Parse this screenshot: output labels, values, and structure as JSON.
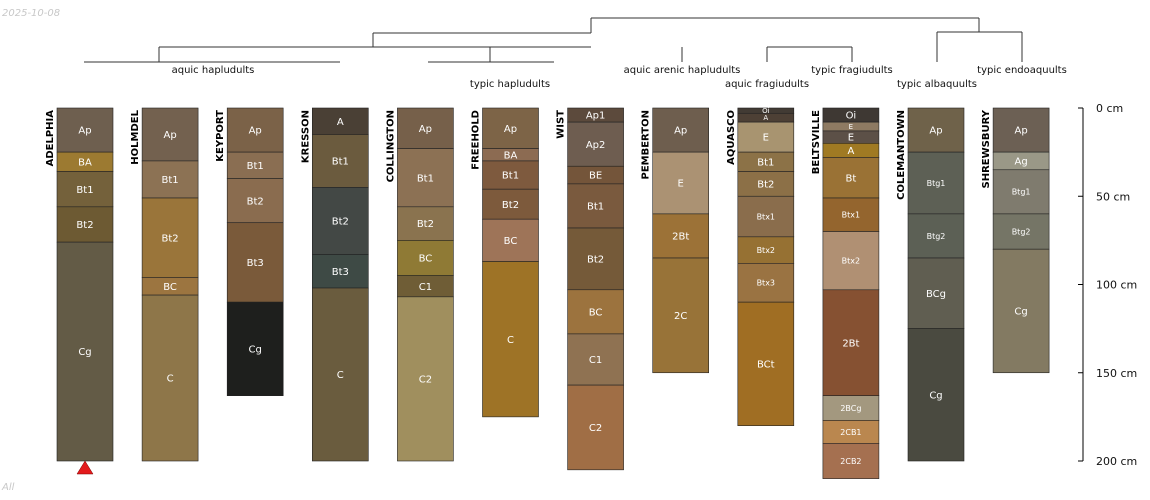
{
  "date_label": "2025-10-08",
  "panel_label": "All",
  "chart_data": {
    "type": "soil-profile-sketch",
    "depth_units": "cm",
    "depth_axis": {
      "min": 0,
      "max": 200,
      "ticks": [
        0,
        50,
        100,
        150,
        200
      ],
      "tick_labels": [
        "0 cm",
        "50 cm",
        "100 cm",
        "150 cm",
        "200 cm"
      ]
    },
    "groups": [
      {
        "label": "aquic hapludults",
        "members": [
          0,
          1,
          2,
          3
        ]
      },
      {
        "label": "typic hapludults",
        "members": [
          4,
          5,
          6
        ]
      },
      {
        "label": "aquic arenic hapludults",
        "members": [
          7
        ]
      },
      {
        "label": "aquic fragiudults",
        "members": [
          8
        ]
      },
      {
        "label": "typic fragiudults",
        "members": [
          9
        ]
      },
      {
        "label": "typic albaquults",
        "members": [
          10
        ]
      },
      {
        "label": "typic endoaquults",
        "members": [
          11
        ]
      }
    ],
    "marker": {
      "profile": "ADELPHIA",
      "shape": "triangle",
      "color": "#e31a1c"
    },
    "profiles": [
      {
        "name": "ADELPHIA",
        "horizons": [
          {
            "name": "Ap",
            "top": 0,
            "bottom": 25,
            "color": "#6e5f4f"
          },
          {
            "name": "BA",
            "top": 25,
            "bottom": 36,
            "color": "#9c7a31"
          },
          {
            "name": "Bt1",
            "top": 36,
            "bottom": 56,
            "color": "#74613b"
          },
          {
            "name": "Bt2",
            "top": 56,
            "bottom": 76,
            "color": "#6d5a33"
          },
          {
            "name": "Cg",
            "top": 76,
            "bottom": 200,
            "color": "#635b46"
          }
        ]
      },
      {
        "name": "HOLMDEL",
        "horizons": [
          {
            "name": "Ap",
            "top": 0,
            "bottom": 30,
            "color": "#73614f"
          },
          {
            "name": "Bt1",
            "top": 30,
            "bottom": 51,
            "color": "#8c7254"
          },
          {
            "name": "Bt2",
            "top": 51,
            "bottom": 96,
            "color": "#9a753a"
          },
          {
            "name": "BC",
            "top": 96,
            "bottom": 106,
            "color": "#9c7540"
          },
          {
            "name": "C",
            "top": 106,
            "bottom": 200,
            "color": "#8e7649"
          }
        ]
      },
      {
        "name": "KEYPORT",
        "horizons": [
          {
            "name": "Ap",
            "top": 0,
            "bottom": 25,
            "color": "#7b6248"
          },
          {
            "name": "Bt1",
            "top": 25,
            "bottom": 40,
            "color": "#8a6e52"
          },
          {
            "name": "Bt2",
            "top": 40,
            "bottom": 65,
            "color": "#8a6c4f"
          },
          {
            "name": "Bt3",
            "top": 65,
            "bottom": 110,
            "color": "#7a5a3a"
          },
          {
            "name": "Cg",
            "top": 110,
            "bottom": 163,
            "color": "#1e1f1d"
          }
        ]
      },
      {
        "name": "KRESSON",
        "horizons": [
          {
            "name": "A",
            "top": 0,
            "bottom": 15,
            "color": "#4a4035"
          },
          {
            "name": "Bt1",
            "top": 15,
            "bottom": 45,
            "color": "#6b5b3e"
          },
          {
            "name": "Bt2",
            "top": 45,
            "bottom": 83,
            "color": "#434845"
          },
          {
            "name": "Bt3",
            "top": 83,
            "bottom": 102,
            "color": "#3e4a45"
          },
          {
            "name": "C",
            "top": 102,
            "bottom": 200,
            "color": "#6a5c3e"
          }
        ]
      },
      {
        "name": "COLLINGTON",
        "horizons": [
          {
            "name": "Ap",
            "top": 0,
            "bottom": 23,
            "color": "#76604a"
          },
          {
            "name": "Bt1",
            "top": 23,
            "bottom": 56,
            "color": "#8c7154"
          },
          {
            "name": "Bt2",
            "top": 56,
            "bottom": 75,
            "color": "#8a734f"
          },
          {
            "name": "BC",
            "top": 75,
            "bottom": 95,
            "color": "#8f7a35"
          },
          {
            "name": "C1",
            "top": 95,
            "bottom": 107,
            "color": "#6f5d36"
          },
          {
            "name": "C2",
            "top": 107,
            "bottom": 200,
            "color": "#a08f5e"
          }
        ]
      },
      {
        "name": "FREEHOLD",
        "horizons": [
          {
            "name": "Ap",
            "top": 0,
            "bottom": 23,
            "color": "#7d6447"
          },
          {
            "name": "BA",
            "top": 23,
            "bottom": 30,
            "color": "#8c6b52"
          },
          {
            "name": "Bt1",
            "top": 30,
            "bottom": 46,
            "color": "#7e5a3e"
          },
          {
            "name": "Bt2",
            "top": 46,
            "bottom": 63,
            "color": "#7d5a3c"
          },
          {
            "name": "BC",
            "top": 63,
            "bottom": 87,
            "color": "#9e7458"
          },
          {
            "name": "C",
            "top": 87,
            "bottom": 175,
            "color": "#9e7326"
          }
        ]
      },
      {
        "name": "WIST",
        "horizons": [
          {
            "name": "Ap1",
            "top": 0,
            "bottom": 8,
            "color": "#5c4a3c"
          },
          {
            "name": "Ap2",
            "top": 8,
            "bottom": 33,
            "color": "#6e5d50"
          },
          {
            "name": "BE",
            "top": 33,
            "bottom": 43,
            "color": "#74553a"
          },
          {
            "name": "Bt1",
            "top": 43,
            "bottom": 68,
            "color": "#7a5a3e"
          },
          {
            "name": "Bt2",
            "top": 68,
            "bottom": 103,
            "color": "#755a39"
          },
          {
            "name": "BC",
            "top": 103,
            "bottom": 128,
            "color": "#9c733e"
          },
          {
            "name": "C1",
            "top": 128,
            "bottom": 157,
            "color": "#8f7252"
          },
          {
            "name": "C2",
            "top": 157,
            "bottom": 205,
            "color": "#a06e45"
          }
        ]
      },
      {
        "name": "PEMBERTON",
        "horizons": [
          {
            "name": "Ap",
            "top": 0,
            "bottom": 25,
            "color": "#6e5e4e"
          },
          {
            "name": "E",
            "top": 25,
            "bottom": 60,
            "color": "#ab9273"
          },
          {
            "name": "2Bt",
            "top": 60,
            "bottom": 85,
            "color": "#9c7237"
          },
          {
            "name": "2C",
            "top": 85,
            "bottom": 150,
            "color": "#987338"
          }
        ]
      },
      {
        "name": "AQUASCO",
        "horizons": [
          {
            "name": "Oi",
            "top": 0,
            "bottom": 3,
            "color": "#423b34"
          },
          {
            "name": "A",
            "top": 3,
            "bottom": 8,
            "color": "#4d4035"
          },
          {
            "name": "E",
            "top": 8,
            "bottom": 25,
            "color": "#a89470"
          },
          {
            "name": "Bt1",
            "top": 25,
            "bottom": 36,
            "color": "#8c7247"
          },
          {
            "name": "Bt2",
            "top": 36,
            "bottom": 50,
            "color": "#8c7047"
          },
          {
            "name": "Btx1",
            "top": 50,
            "bottom": 73,
            "color": "#8a6d4c"
          },
          {
            "name": "Btx2",
            "top": 73,
            "bottom": 88,
            "color": "#967133"
          },
          {
            "name": "Btx3",
            "top": 88,
            "bottom": 110,
            "color": "#9a7342"
          },
          {
            "name": "BCt",
            "top": 110,
            "bottom": 180,
            "color": "#a06e23"
          }
        ]
      },
      {
        "name": "BELTSVILLE",
        "horizons": [
          {
            "name": "Oi",
            "top": 0,
            "bottom": 8,
            "color": "#3e3833"
          },
          {
            "name": "E",
            "top": 8,
            "bottom": 13,
            "color": "#8e7a62"
          },
          {
            "name": "E",
            "top": 13,
            "bottom": 20,
            "color": "#5c5047"
          },
          {
            "name": "A",
            "top": 20,
            "bottom": 28,
            "color": "#a07a23"
          },
          {
            "name": "Bt",
            "top": 28,
            "bottom": 51,
            "color": "#9a7235"
          },
          {
            "name": "Btx1",
            "top": 51,
            "bottom": 70,
            "color": "#94652e"
          },
          {
            "name": "Btx2",
            "top": 70,
            "bottom": 103,
            "color": "#b09073"
          },
          {
            "name": "2Bt",
            "top": 103,
            "bottom": 163,
            "color": "#865132"
          },
          {
            "name": "2BCg",
            "top": 163,
            "bottom": 177,
            "color": "#a3987f"
          },
          {
            "name": "2CB1",
            "top": 177,
            "bottom": 190,
            "color": "#ba874f"
          },
          {
            "name": "2CB2",
            "top": 190,
            "bottom": 210,
            "color": "#a57050"
          }
        ]
      },
      {
        "name": "COLEMANTOWN",
        "horizons": [
          {
            "name": "Ap",
            "top": 0,
            "bottom": 25,
            "color": "#6f624a"
          },
          {
            "name": "Btg1",
            "top": 25,
            "bottom": 60,
            "color": "#5d6055"
          },
          {
            "name": "Btg2",
            "top": 60,
            "bottom": 85,
            "color": "#5c6055"
          },
          {
            "name": "BCg",
            "top": 85,
            "bottom": 125,
            "color": "#605e51"
          },
          {
            "name": "Cg",
            "top": 125,
            "bottom": 200,
            "color": "#4a4a40"
          }
        ]
      },
      {
        "name": "SHREWSBURY",
        "horizons": [
          {
            "name": "Ap",
            "top": 0,
            "bottom": 25,
            "color": "#6c6054"
          },
          {
            "name": "Ag",
            "top": 25,
            "bottom": 35,
            "color": "#9a9887"
          },
          {
            "name": "Btg1",
            "top": 35,
            "bottom": 60,
            "color": "#7f7b6e"
          },
          {
            "name": "Btg2",
            "top": 60,
            "bottom": 80,
            "color": "#757566"
          },
          {
            "name": "Cg",
            "top": 80,
            "bottom": 150,
            "color": "#837a62"
          }
        ]
      }
    ]
  }
}
